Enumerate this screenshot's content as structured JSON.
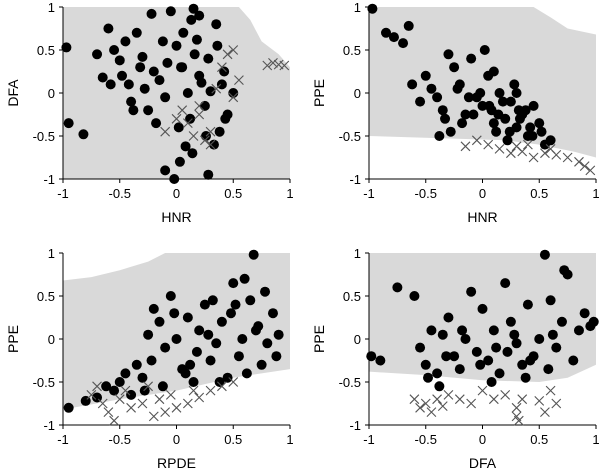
{
  "chart_data": [
    {
      "type": "scatter",
      "xlabel": "HNR",
      "ylabel": "DFA",
      "xlim": [
        -1,
        1
      ],
      "ylim": [
        -1,
        1
      ],
      "xticks": [
        "-1",
        "-0.5",
        "0",
        "0.5",
        "1"
      ],
      "yticks": [
        "-1",
        "-0.5",
        "0",
        "0.5",
        "1"
      ],
      "region": {
        "color": "#d9d9d9",
        "upper": [
          [
            -1,
            1
          ],
          [
            0.55,
            1
          ],
          [
            0.65,
            0.85
          ],
          [
            0.75,
            0.6
          ],
          [
            0.9,
            0.45
          ],
          [
            1,
            0.3
          ],
          [
            1,
            -1
          ],
          [
            0.4,
            -1
          ]
        ],
        "lower": [
          [
            -1,
            -1
          ],
          [
            0.4,
            -1
          ]
        ]
      },
      "series": [
        {
          "marker": "circle",
          "x": [
            -0.97,
            -0.82,
            -0.95,
            -0.6,
            -0.55,
            -0.5,
            -0.45,
            -0.42,
            -0.35,
            -0.3,
            -0.25,
            -0.22,
            -0.2,
            -0.15,
            -0.1,
            -0.05,
            0.0,
            0.05,
            0.1,
            0.12,
            0.15,
            0.18,
            0.2,
            0.25,
            0.28,
            0.3,
            0.35,
            0.38,
            0.4,
            0.45,
            -0.7,
            -0.65,
            -0.58,
            -0.4,
            -0.32,
            -0.12,
            -0.08,
            0.02,
            0.08,
            0.13,
            0.22,
            0.33,
            0.42,
            0.5,
            -0.28,
            -0.18,
            0.06,
            0.16,
            0.26,
            0.36,
            -0.02,
            -0.1,
            0.03,
            0.14,
            0.2,
            0.28,
            0.43,
            -0.48,
            -0.38,
            0.04
          ],
          "y": [
            0.53,
            -0.48,
            -0.35,
            0.75,
            0.5,
            0.38,
            0.6,
            0.1,
            0.7,
            0.42,
            -0.2,
            0.92,
            0.25,
            0.15,
            -0.05,
            0.95,
            0.55,
            0.3,
            0.0,
            -0.3,
            0.98,
            0.62,
            0.2,
            -0.15,
            0.4,
            0.02,
            0.8,
            -0.45,
            0.1,
            -0.25,
            0.45,
            0.18,
            0.1,
            -0.1,
            0.3,
            0.6,
            0.35,
            -0.4,
            -0.62,
            0.85,
            0.12,
            -0.6,
            0.25,
            0.0,
            0.05,
            -0.35,
            0.7,
            0.45,
            -0.5,
            0.55,
            -1.0,
            -0.9,
            -0.8,
            -0.7,
            0.9,
            -0.95,
            -0.3,
            0.2,
            -0.2,
            0.3
          ]
        },
        {
          "marker": "x",
          "x": [
            -0.1,
            0.0,
            0.05,
            0.1,
            0.15,
            0.2,
            0.25,
            0.3,
            0.35,
            0.4,
            0.45,
            0.5,
            0.55,
            0.8,
            0.85,
            0.9,
            0.95,
            0.5,
            0.3,
            0.2
          ],
          "y": [
            -0.45,
            -0.3,
            -0.2,
            -0.35,
            -0.5,
            -0.25,
            -0.55,
            -0.45,
            0.05,
            0.3,
            0.45,
            0.5,
            0.15,
            0.32,
            0.35,
            0.33,
            0.32,
            -0.05,
            -0.6,
            -0.15
          ]
        }
      ]
    },
    {
      "type": "scatter",
      "xlabel": "HNR",
      "ylabel": "PPE",
      "xlim": [
        -1,
        1
      ],
      "ylim": [
        -1,
        1
      ],
      "xticks": [
        "-1",
        "-0.5",
        "0",
        "0.5",
        "1"
      ],
      "yticks": [
        "-1",
        "-0.5",
        "0",
        "0.5",
        "1"
      ],
      "region": {
        "color": "#d9d9d9",
        "upper": [
          [
            -1,
            1
          ],
          [
            0.45,
            1
          ],
          [
            0.6,
            0.88
          ],
          [
            0.75,
            0.75
          ],
          [
            1,
            0.68
          ]
        ],
        "lower": [
          [
            -1,
            -0.5
          ],
          [
            0.2,
            -0.55
          ],
          [
            0.5,
            -0.6
          ],
          [
            0.8,
            -0.68
          ],
          [
            1,
            -0.75
          ]
        ]
      },
      "series": [
        {
          "marker": "circle",
          "x": [
            -0.97,
            -0.85,
            -0.78,
            -0.7,
            -0.65,
            -0.62,
            -0.55,
            -0.5,
            -0.45,
            -0.4,
            -0.35,
            -0.3,
            -0.25,
            -0.2,
            -0.15,
            -0.1,
            -0.05,
            0.0,
            0.05,
            0.1,
            0.15,
            0.2,
            0.25,
            0.3,
            0.35,
            0.4,
            0.45,
            0.5,
            0.55,
            0.6,
            -0.33,
            -0.28,
            -0.22,
            -0.12,
            -0.08,
            0.02,
            0.08,
            0.12,
            0.18,
            0.22,
            0.28,
            0.33,
            0.38,
            0.42,
            -0.18,
            -0.02,
            0.06,
            0.14,
            0.24,
            0.32,
            0.44,
            0.52,
            -0.38,
            0.1,
            0.3
          ],
          "y": [
            0.98,
            0.7,
            0.65,
            0.58,
            0.78,
            0.1,
            -0.1,
            0.2,
            0.05,
            -0.05,
            -0.2,
            0.45,
            0.3,
            0.1,
            -0.25,
            0.4,
            -0.05,
            -0.15,
            0.2,
            -0.35,
            0.0,
            -0.3,
            -0.1,
            -0.4,
            -0.25,
            -0.5,
            -0.15,
            -0.35,
            -0.6,
            -0.55,
            -0.3,
            -0.45,
            0.05,
            -0.05,
            -0.25,
            0.5,
            -0.2,
            -0.45,
            -0.1,
            -0.55,
            0.1,
            -0.3,
            -0.2,
            -0.4,
            -0.35,
            0.0,
            -0.15,
            -0.25,
            -0.45,
            -0.2,
            -0.5,
            -0.45,
            -0.5,
            0.25,
            0.0
          ]
        },
        {
          "marker": "x",
          "x": [
            -0.15,
            -0.05,
            0.05,
            0.15,
            0.25,
            0.3,
            0.35,
            0.45,
            0.55,
            0.65,
            0.75,
            0.85,
            0.9,
            0.95,
            0.6,
            0.4
          ],
          "y": [
            -0.62,
            -0.55,
            -0.6,
            -0.65,
            -0.7,
            -0.62,
            -0.68,
            -0.75,
            -0.7,
            -0.72,
            -0.75,
            -0.8,
            -0.85,
            -0.9,
            -0.65,
            -0.6
          ]
        }
      ]
    },
    {
      "type": "scatter",
      "xlabel": "RPDE",
      "ylabel": "PPE",
      "xlim": [
        -1,
        1
      ],
      "ylim": [
        -1,
        1
      ],
      "xticks": [
        "-1",
        "-0.5",
        "0",
        "0.5",
        "1"
      ],
      "yticks": [
        "-1",
        "-0.5",
        "0",
        "0.5",
        "1"
      ],
      "region": {
        "color": "#d9d9d9",
        "upper": [
          [
            -1,
            0.68
          ],
          [
            -0.75,
            0.72
          ],
          [
            -0.5,
            0.8
          ],
          [
            -0.25,
            0.9
          ],
          [
            -0.1,
            1
          ],
          [
            1,
            1
          ]
        ],
        "lower": [
          [
            -1,
            -0.82
          ],
          [
            -0.5,
            -0.7
          ],
          [
            0,
            -0.6
          ],
          [
            0.5,
            -0.45
          ],
          [
            1,
            -0.35
          ]
        ]
      },
      "series": [
        {
          "marker": "circle",
          "x": [
            -0.95,
            -0.8,
            -0.7,
            -0.62,
            -0.55,
            -0.5,
            -0.45,
            -0.4,
            -0.35,
            -0.3,
            -0.25,
            -0.2,
            -0.15,
            -0.1,
            -0.05,
            0.0,
            0.05,
            0.1,
            0.15,
            0.2,
            0.25,
            0.3,
            0.35,
            0.4,
            0.45,
            0.5,
            0.55,
            0.6,
            0.65,
            0.7,
            0.75,
            0.8,
            0.85,
            0.9,
            -0.22,
            -0.12,
            -0.02,
            0.08,
            0.18,
            0.28,
            0.38,
            0.48,
            0.58,
            0.68,
            0.78,
            0.88,
            -0.28,
            0.12,
            0.32,
            0.52,
            0.62,
            0.72
          ],
          "y": [
            -0.8,
            -0.72,
            -0.68,
            -0.55,
            -0.6,
            -0.5,
            -0.4,
            -0.65,
            -0.3,
            -0.45,
            0.05,
            0.35,
            0.2,
            -0.1,
            0.5,
            0.0,
            -0.35,
            0.25,
            -0.5,
            0.1,
            0.4,
            -0.25,
            -0.05,
            0.2,
            -0.45,
            0.65,
            -0.2,
            0.7,
            0.45,
            0.1,
            -0.3,
            -0.05,
            0.3,
            0.05,
            -0.25,
            -0.55,
            0.3,
            -0.4,
            -0.15,
            0.05,
            -0.5,
            0.3,
            0.0,
            0.98,
            0.55,
            -0.2,
            -0.6,
            -0.3,
            0.45,
            0.4,
            -0.4,
            0.15
          ]
        },
        {
          "marker": "x",
          "x": [
            -0.75,
            -0.65,
            -0.6,
            -0.55,
            -0.5,
            -0.4,
            -0.3,
            -0.2,
            -0.15,
            -0.1,
            0.0,
            0.1,
            0.2,
            0.3,
            0.4,
            0.5,
            -0.7,
            -0.45,
            -0.25,
            -0.05,
            0.15
          ],
          "y": [
            -0.65,
            -0.75,
            -0.85,
            -0.95,
            -0.7,
            -0.8,
            -0.75,
            -0.9,
            -0.7,
            -0.85,
            -0.8,
            -0.75,
            -0.68,
            -0.6,
            -0.55,
            -0.5,
            -0.55,
            -0.6,
            -0.55,
            -0.65,
            -0.6
          ]
        }
      ]
    },
    {
      "type": "scatter",
      "xlabel": "DFA",
      "ylabel": "PPE",
      "xlim": [
        -1,
        1
      ],
      "ylim": [
        -1,
        1
      ],
      "xticks": [
        "-1",
        "-0.5",
        "0",
        "0.5",
        "1"
      ],
      "yticks": [
        "-1",
        "-0.5",
        "0",
        "0.5",
        "1"
      ],
      "region": {
        "color": "#d9d9d9",
        "upper": [
          [
            -1,
            1
          ],
          [
            1,
            1
          ]
        ],
        "lower": [
          [
            -1,
            -0.38
          ],
          [
            -0.5,
            -0.42
          ],
          [
            0,
            -0.48
          ],
          [
            0.5,
            -0.5
          ],
          [
            0.75,
            -0.45
          ],
          [
            1,
            -0.3
          ]
        ]
      },
      "series": [
        {
          "marker": "circle",
          "x": [
            -0.98,
            -0.9,
            -0.75,
            -0.6,
            -0.55,
            -0.5,
            -0.45,
            -0.4,
            -0.35,
            -0.3,
            -0.25,
            -0.2,
            -0.15,
            -0.1,
            -0.05,
            0.0,
            0.05,
            0.1,
            0.15,
            0.2,
            0.25,
            0.3,
            0.35,
            0.4,
            0.45,
            0.5,
            0.55,
            0.6,
            0.65,
            0.7,
            0.75,
            0.8,
            0.85,
            0.9,
            0.95,
            0.98,
            -0.48,
            -0.32,
            -0.18,
            -0.02,
            0.12,
            0.28,
            0.42,
            0.58,
            0.72,
            -0.38,
            0.08,
            0.22,
            0.38,
            0.62
          ],
          "y": [
            -0.2,
            -0.25,
            0.6,
            0.5,
            -0.1,
            -0.3,
            0.1,
            -0.4,
            0.05,
            0.25,
            -0.2,
            -0.35,
            0.0,
            0.55,
            -0.15,
            0.35,
            -0.25,
            0.1,
            -0.4,
            0.65,
            0.2,
            -0.05,
            -0.3,
            0.4,
            -0.2,
            0.0,
            0.98,
            0.45,
            -0.1,
            0.2,
            0.75,
            -0.25,
            0.1,
            0.3,
            0.15,
            0.2,
            -0.45,
            -0.2,
            0.1,
            -0.3,
            -0.1,
            0.05,
            -0.25,
            -0.35,
            0.8,
            -0.55,
            -0.5,
            -0.15,
            -0.45,
            0.05
          ]
        },
        {
          "marker": "x",
          "x": [
            -0.6,
            -0.55,
            -0.5,
            -0.45,
            -0.4,
            -0.35,
            -0.3,
            -0.2,
            -0.1,
            0.0,
            0.1,
            0.2,
            0.3,
            0.35,
            0.5,
            0.6,
            0.65,
            0.55,
            0.32,
            0.3
          ],
          "y": [
            -0.7,
            -0.8,
            -0.75,
            -0.85,
            -0.7,
            -0.78,
            -0.65,
            -0.7,
            -0.75,
            -0.6,
            -0.7,
            -0.65,
            -0.8,
            -0.7,
            -0.72,
            -0.6,
            -0.75,
            -0.85,
            -0.95,
            -0.9
          ]
        }
      ]
    }
  ]
}
